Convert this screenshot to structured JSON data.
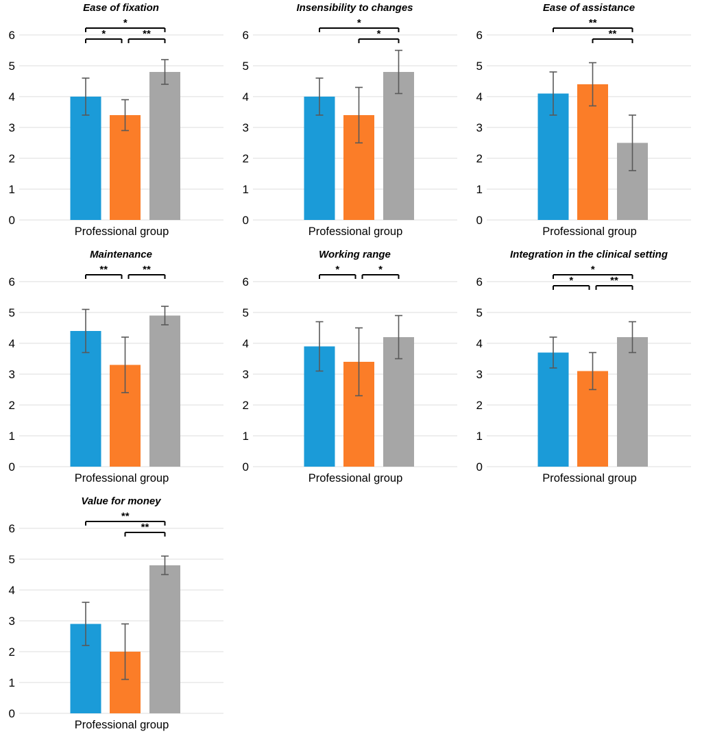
{
  "figure": {
    "x_axis_label": "Professional group",
    "bar_colors": [
      "#1b9bd8",
      "#fb7d28",
      "#a6a6a6"
    ],
    "error_bar_color": "#595959",
    "gridline_color": "#e8e8e8",
    "bracket_color": "#000000",
    "text_color": "#000000",
    "background_color": "#ffffff"
  },
  "chart_data": [
    {
      "type": "bar",
      "title": "Ease of fixation",
      "xlabel": "Professional group",
      "ylabel": "",
      "ylim": [
        0,
        6
      ],
      "yticks": [
        0,
        1,
        2,
        3,
        4,
        5,
        6
      ],
      "grid": true,
      "legend": "none",
      "values": [
        4.0,
        3.4,
        4.8
      ],
      "errors": [
        0.6,
        0.5,
        0.4
      ],
      "significance_brackets": [
        {
          "from_bar": 0,
          "to_bar": 2,
          "label": "*",
          "row": "upper"
        },
        {
          "from_bar": 0,
          "to_bar": 1,
          "label": "*",
          "row": "lower"
        },
        {
          "from_bar": 1,
          "to_bar": 2,
          "label": "**",
          "row": "lower"
        }
      ]
    },
    {
      "type": "bar",
      "title": "Insensibility to changes",
      "xlabel": "Professional group",
      "ylabel": "",
      "ylim": [
        0,
        6
      ],
      "yticks": [
        0,
        1,
        2,
        3,
        4,
        5,
        6
      ],
      "grid": true,
      "legend": "none",
      "values": [
        4.0,
        3.4,
        4.8
      ],
      "errors": [
        0.6,
        0.9,
        0.7
      ],
      "significance_brackets": [
        {
          "from_bar": 0,
          "to_bar": 2,
          "label": "*",
          "row": "upper"
        },
        {
          "from_bar": 1,
          "to_bar": 2,
          "label": "*",
          "row": "lower"
        }
      ]
    },
    {
      "type": "bar",
      "title": "Ease of assistance",
      "xlabel": "Professional group",
      "ylabel": "",
      "ylim": [
        0,
        6
      ],
      "yticks": [
        0,
        1,
        2,
        3,
        4,
        5,
        6
      ],
      "grid": true,
      "legend": "none",
      "values": [
        4.1,
        4.4,
        2.5
      ],
      "errors": [
        0.7,
        0.7,
        0.9
      ],
      "significance_brackets": [
        {
          "from_bar": 0,
          "to_bar": 2,
          "label": "**",
          "row": "upper"
        },
        {
          "from_bar": 1,
          "to_bar": 2,
          "label": "**",
          "row": "lower"
        }
      ]
    },
    {
      "type": "bar",
      "title": "Maintenance",
      "xlabel": "Professional group",
      "ylabel": "",
      "ylim": [
        0,
        6
      ],
      "yticks": [
        0,
        1,
        2,
        3,
        4,
        5,
        6
      ],
      "grid": true,
      "legend": "none",
      "values": [
        4.4,
        3.3,
        4.9
      ],
      "errors": [
        0.7,
        0.9,
        0.3
      ],
      "significance_brackets": [
        {
          "from_bar": 0,
          "to_bar": 1,
          "label": "**",
          "row": "upper"
        },
        {
          "from_bar": 1,
          "to_bar": 2,
          "label": "**",
          "row": "upper"
        }
      ]
    },
    {
      "type": "bar",
      "title": "Working range",
      "xlabel": "Professional group",
      "ylabel": "",
      "ylim": [
        0,
        6
      ],
      "yticks": [
        0,
        1,
        2,
        3,
        4,
        5,
        6
      ],
      "grid": true,
      "legend": "none",
      "values": [
        3.9,
        3.4,
        4.2
      ],
      "errors": [
        0.8,
        1.1,
        0.7
      ],
      "significance_brackets": [
        {
          "from_bar": 0,
          "to_bar": 1,
          "label": "*",
          "row": "upper"
        },
        {
          "from_bar": 1,
          "to_bar": 2,
          "label": "*",
          "row": "upper"
        }
      ]
    },
    {
      "type": "bar",
      "title": "Integration in the clinical setting",
      "xlabel": "Professional group",
      "ylabel": "",
      "ylim": [
        0,
        6
      ],
      "yticks": [
        0,
        1,
        2,
        3,
        4,
        5,
        6
      ],
      "grid": true,
      "legend": "none",
      "values": [
        3.7,
        3.1,
        4.2
      ],
      "errors": [
        0.5,
        0.6,
        0.5
      ],
      "significance_brackets": [
        {
          "from_bar": 0,
          "to_bar": 2,
          "label": "*",
          "row": "upper"
        },
        {
          "from_bar": 0,
          "to_bar": 1,
          "label": "*",
          "row": "lower"
        },
        {
          "from_bar": 1,
          "to_bar": 2,
          "label": "**",
          "row": "lower"
        }
      ]
    },
    {
      "type": "bar",
      "title": "Value for money",
      "xlabel": "Professional group",
      "ylabel": "",
      "ylim": [
        0,
        6
      ],
      "yticks": [
        0,
        1,
        2,
        3,
        4,
        5,
        6
      ],
      "grid": true,
      "legend": "none",
      "values": [
        2.9,
        2.0,
        4.8
      ],
      "errors": [
        0.7,
        0.9,
        0.3
      ],
      "significance_brackets": [
        {
          "from_bar": 0,
          "to_bar": 2,
          "label": "**",
          "row": "upper"
        },
        {
          "from_bar": 1,
          "to_bar": 2,
          "label": "**",
          "row": "lower"
        }
      ]
    }
  ]
}
